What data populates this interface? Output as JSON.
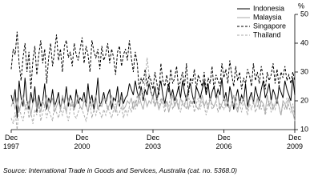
{
  "chart_data": {
    "type": "line",
    "y_label": "%",
    "source": "Source: International Trade in Goods and Services, Australia (cat. no. 5368.0)",
    "categories": [
      "Dec 1997",
      null,
      null,
      null,
      null,
      null,
      null,
      null,
      null,
      null,
      null,
      null,
      null,
      null,
      null,
      null,
      null,
      null,
      null,
      null,
      null,
      null,
      null,
      null,
      null,
      null,
      null,
      null,
      null,
      null,
      null,
      null,
      null,
      null,
      null,
      null,
      "Dec 2000",
      null,
      null,
      null,
      null,
      null,
      null,
      null,
      null,
      null,
      null,
      null,
      null,
      null,
      null,
      null,
      null,
      null,
      null,
      null,
      null,
      null,
      null,
      null,
      null,
      null,
      null,
      null,
      null,
      null,
      null,
      null,
      null,
      null,
      null,
      null,
      "Dec 2003",
      null,
      null,
      null,
      null,
      null,
      null,
      null,
      null,
      null,
      null,
      null,
      null,
      null,
      null,
      null,
      null,
      null,
      null,
      null,
      null,
      null,
      null,
      null,
      null,
      null,
      null,
      null,
      null,
      null,
      null,
      null,
      null,
      null,
      null,
      null,
      "Dec 2006",
      null,
      null,
      null,
      null,
      null,
      null,
      null,
      null,
      null,
      null,
      null,
      null,
      null,
      null,
      null,
      null,
      null,
      null,
      null,
      null,
      null,
      null,
      null,
      null,
      null,
      null,
      null,
      null,
      null,
      null,
      null,
      null,
      null,
      null,
      null,
      "Dec 2009"
    ],
    "ylim": [
      10,
      50
    ],
    "yticks": [
      10,
      20,
      30,
      40,
      50
    ],
    "series": [
      {
        "name": "Indonesia",
        "color": "#000000",
        "dash": false,
        "values": [
          22,
          19,
          24,
          14,
          27,
          21,
          18,
          28,
          20,
          17,
          23,
          19,
          25,
          16,
          22,
          18,
          20,
          26,
          17,
          21,
          19,
          24,
          18,
          20,
          23,
          17,
          21,
          19,
          25,
          18,
          22,
          20,
          17,
          24,
          19,
          21,
          20,
          23,
          18,
          26,
          19,
          22,
          17,
          21,
          28,
          18,
          20,
          23,
          19,
          22,
          24,
          17,
          21,
          20,
          25,
          18,
          23,
          19,
          21,
          22,
          26,
          24,
          22,
          27,
          23,
          21,
          25,
          20,
          24,
          22,
          26,
          23,
          21,
          25,
          20,
          24,
          27,
          22,
          19,
          23,
          26,
          21,
          24,
          20,
          22,
          25,
          21,
          27,
          23,
          20,
          24,
          26,
          22,
          19,
          25,
          23,
          21,
          24,
          27,
          22,
          26,
          20,
          23,
          25,
          21,
          24,
          22,
          28,
          20,
          23,
          18,
          25,
          22,
          17,
          21,
          24,
          19,
          22,
          20,
          26,
          18,
          21,
          23,
          19,
          25,
          22,
          20,
          24,
          27,
          21,
          23,
          26,
          20,
          24,
          22,
          19,
          25,
          23,
          21,
          27,
          24,
          22,
          20,
          28,
          22
        ]
      },
      {
        "name": "Malaysia",
        "color": "#aaaaaa",
        "dash": false,
        "values": [
          18,
          20,
          17,
          21,
          16,
          19,
          22,
          18,
          17,
          20,
          15,
          19,
          21,
          17,
          19,
          16,
          20,
          18,
          22,
          17,
          19,
          21,
          16,
          18,
          20,
          17,
          22,
          19,
          16,
          21,
          18,
          20,
          17,
          19,
          22,
          18,
          17,
          20,
          19,
          16,
          21,
          18,
          20,
          22,
          17,
          19,
          18,
          21,
          20,
          17,
          19,
          22,
          18,
          16,
          20,
          19,
          21,
          17,
          18,
          20,
          19,
          21,
          17,
          20,
          18,
          22,
          19,
          17,
          21,
          18,
          20,
          19,
          22,
          18,
          20,
          17,
          19,
          21,
          18,
          20,
          16,
          19,
          22,
          18,
          20,
          17,
          21,
          19,
          18,
          22,
          17,
          20,
          19,
          21,
          18,
          17,
          19,
          22,
          18,
          20,
          17,
          21,
          19,
          18,
          20,
          22,
          17,
          19,
          21,
          18,
          20,
          17,
          19,
          22,
          18,
          16,
          20,
          19,
          21,
          18,
          17,
          20,
          22,
          19,
          18,
          21,
          17,
          20,
          19,
          16,
          22,
          18,
          20,
          17,
          19,
          21,
          18,
          15,
          20,
          19,
          17,
          21,
          18,
          16,
          13
        ]
      },
      {
        "name": "Singapore",
        "color": "#000000",
        "dash": true,
        "values": [
          31,
          38,
          36,
          44,
          33,
          27,
          35,
          40,
          30,
          37,
          24,
          34,
          39,
          29,
          36,
          41,
          33,
          38,
          26,
          35,
          40,
          32,
          37,
          43,
          34,
          38,
          30,
          39,
          41,
          35,
          37,
          32,
          40,
          36,
          34,
          38,
          42,
          33,
          39,
          36,
          30,
          41,
          37,
          35,
          38,
          31,
          39,
          34,
          36,
          40,
          33,
          38,
          35,
          29,
          37,
          39,
          32,
          36,
          38,
          34,
          41,
          35,
          30,
          37,
          33,
          24,
          28,
          26,
          31,
          25,
          29,
          27,
          24,
          30,
          26,
          22,
          33,
          27,
          25,
          29,
          23,
          31,
          26,
          28,
          32,
          24,
          27,
          30,
          25,
          33,
          22,
          28,
          26,
          31,
          24,
          29,
          27,
          25,
          30,
          23,
          28,
          26,
          32,
          24,
          29,
          27,
          25,
          33,
          28,
          31,
          26,
          34,
          29,
          25,
          32,
          27,
          30,
          24,
          28,
          26,
          31,
          29,
          25,
          33,
          27,
          30,
          26,
          32,
          28,
          24,
          30,
          27,
          29,
          33,
          26,
          31,
          25,
          30,
          28,
          32,
          27,
          29,
          26,
          30,
          27
        ]
      },
      {
        "name": "Thailand",
        "color": "#aaaaaa",
        "dash": true,
        "values": [
          14,
          12,
          16,
          10,
          18,
          15,
          13,
          17,
          20,
          14,
          16,
          12,
          17,
          15,
          19,
          13,
          16,
          18,
          14,
          17,
          15,
          13,
          19,
          16,
          14,
          17,
          15,
          18,
          16,
          13,
          17,
          19,
          15,
          14,
          16,
          18,
          17,
          15,
          13,
          16,
          19,
          14,
          17,
          15,
          18,
          16,
          14,
          17,
          15,
          18,
          16,
          14,
          17,
          19,
          15,
          16,
          18,
          14,
          17,
          15,
          18,
          16,
          20,
          17,
          22,
          19,
          24,
          21,
          27,
          35,
          29,
          23,
          20,
          18,
          22,
          17,
          21,
          19,
          16,
          20,
          18,
          22,
          17,
          19,
          21,
          18,
          16,
          20,
          19,
          17,
          22,
          18,
          20,
          16,
          19,
          21,
          17,
          20,
          18,
          15,
          19,
          21,
          17,
          18,
          20,
          16,
          19,
          18,
          17,
          21,
          19,
          16,
          20,
          18,
          22,
          17,
          19,
          16,
          20,
          18,
          15,
          19,
          17,
          20,
          16,
          18,
          21,
          17,
          19,
          15,
          18,
          20,
          16,
          19,
          17,
          20,
          18,
          15,
          19,
          17,
          21,
          18,
          16,
          19,
          14
        ]
      }
    ]
  }
}
